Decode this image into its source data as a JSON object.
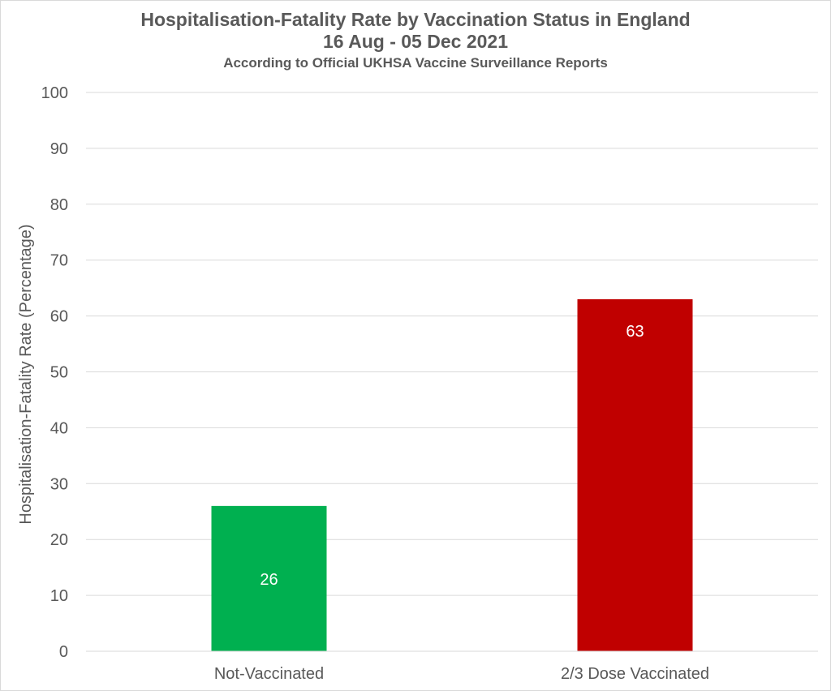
{
  "chart_data": {
    "type": "bar",
    "title": "Hospitalisation-Fatality Rate by Vaccination Status in England",
    "subtitle": "16 Aug - 05 Dec 2021",
    "note": "According to Official UKHSA Vaccine Surveillance Reports",
    "categories": [
      "Not-Vaccinated",
      "2/3 Dose Vaccinated"
    ],
    "values": [
      26,
      63
    ],
    "colors": [
      "#00b050",
      "#c00000"
    ],
    "xlabel": "",
    "ylabel": "Hospitalisation-Fatality Rate (Percentage)",
    "ylim": [
      0,
      100
    ],
    "yticks": [
      0,
      10,
      20,
      30,
      40,
      50,
      60,
      70,
      80,
      90,
      100
    ],
    "grid": true,
    "legend": "none"
  }
}
